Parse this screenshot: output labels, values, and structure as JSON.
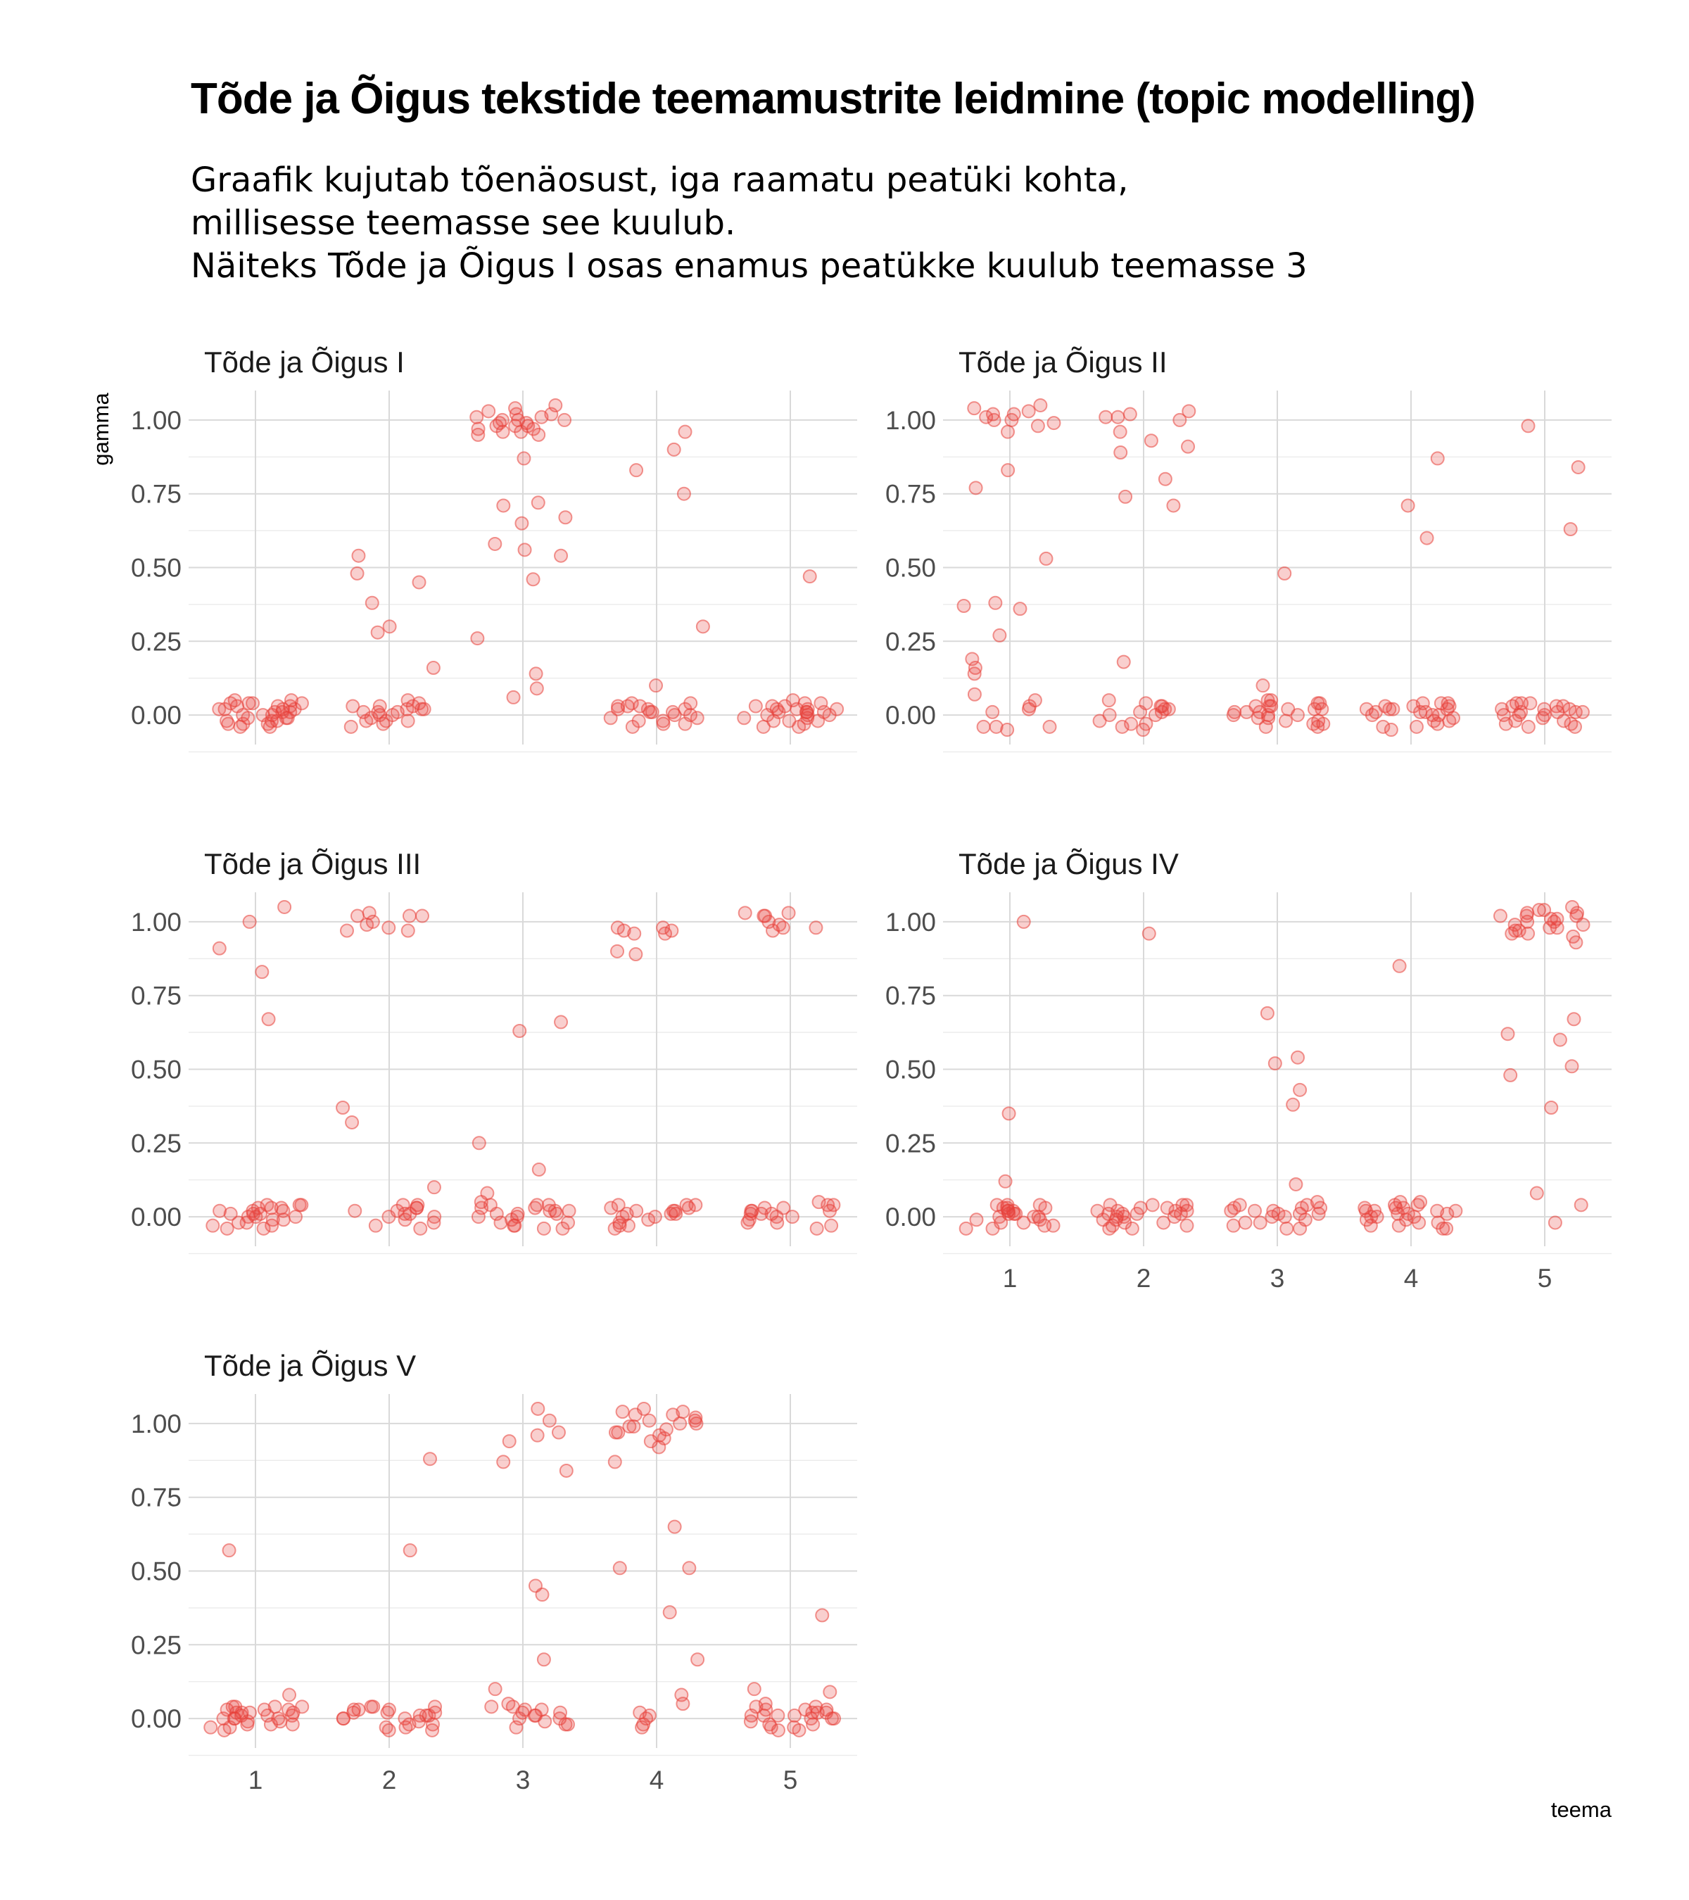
{
  "chart_data": {
    "type": "scatter",
    "title": "Tõde ja Õigus tekstide teemamustrite leidmine (topic modelling)",
    "subtitle_lines": [
      "Graafik kujutab tõenäosust, iga raamatu peatüki kohta,",
      "millisesse teemasse see kuulub.",
      "Näiteks Tõde ja Õigus I osas enamus peatükke kuulub teemasse 3"
    ],
    "xlabel": "teema",
    "ylabel": "gamma",
    "x_categories": [
      "1",
      "2",
      "3",
      "4",
      "5"
    ],
    "y_ticks": [
      "0.00",
      "0.25",
      "0.50",
      "0.75",
      "1.00"
    ],
    "ylim": [
      -0.1,
      1.1
    ],
    "grid": true,
    "point_color": "#e8413a",
    "point_opacity": 0.25,
    "jitter_width": 0.35,
    "panels": [
      {
        "name": "Tõde ja Õigus I",
        "show_x_labels": false,
        "show_y_title": true,
        "series": [
          {
            "topic": 1,
            "gamma": [
              -0.04,
              0.03,
              -0.03,
              0.04,
              0.0,
              -0.02,
              0.02,
              0.05,
              0.01,
              -0.01,
              0.03,
              -0.04,
              0.02,
              -0.02,
              0.0,
              0.04,
              -0.03,
              0.01,
              0.03,
              -0.01,
              0.02,
              0.04,
              -0.02,
              0.0,
              0.05,
              -0.03,
              0.02,
              0.01,
              -0.01,
              0.04
            ]
          },
          {
            "topic": 2,
            "gamma": [
              0.45,
              0.54,
              0.48,
              0.38,
              0.28,
              0.3,
              0.16,
              -0.02,
              0.03,
              0.01,
              -0.03,
              0.02,
              0.04,
              -0.01,
              0.0,
              0.02,
              -0.02,
              0.03,
              0.01,
              -0.04,
              0.02,
              0.0,
              0.05,
              -0.02,
              0.01,
              0.03
            ]
          },
          {
            "topic": 3,
            "gamma": [
              0.98,
              1.0,
              1.02,
              0.97,
              0.99,
              1.03,
              0.95,
              1.01,
              0.96,
              1.0,
              1.04,
              0.98,
              1.02,
              0.96,
              0.99,
              1.05,
              0.97,
              1.01,
              0.95,
              0.98,
              1.0,
              0.87,
              0.72,
              0.71,
              0.65,
              0.67,
              0.58,
              0.56,
              0.54,
              0.46,
              0.26,
              0.14,
              0.09,
              0.06
            ]
          },
          {
            "topic": 4,
            "gamma": [
              0.96,
              0.9,
              0.83,
              0.75,
              0.3,
              0.1,
              0.03,
              -0.02,
              0.01,
              0.04,
              -0.03,
              0.0,
              0.02,
              -0.01,
              0.03,
              -0.04,
              0.01,
              0.02,
              -0.02,
              0.0,
              0.04,
              -0.03,
              0.02,
              0.01,
              -0.01,
              0.03
            ]
          },
          {
            "topic": 5,
            "gamma": [
              0.47,
              0.04,
              -0.02,
              0.02,
              -0.04,
              0.01,
              0.03,
              -0.01,
              0.0,
              0.05,
              -0.03,
              0.02,
              0.01,
              -0.02,
              0.04,
              0.0,
              -0.01,
              0.03,
              0.02,
              -0.04,
              0.01,
              0.03,
              -0.02,
              0.0,
              0.02,
              0.01
            ]
          }
        ]
      },
      {
        "name": "Tõde ja Õigus II",
        "show_x_labels": false,
        "show_y_title": false,
        "series": [
          {
            "topic": 1,
            "gamma": [
              1.01,
              1.0,
              1.04,
              1.02,
              0.99,
              1.03,
              1.0,
              1.05,
              0.98,
              1.02,
              0.96,
              0.83,
              0.77,
              0.53,
              0.38,
              0.37,
              0.36,
              0.27,
              0.19,
              0.16,
              0.14,
              0.07,
              0.05,
              0.03,
              0.02,
              -0.04,
              -0.04,
              -0.05,
              -0.04,
              0.01
            ]
          },
          {
            "topic": 2,
            "gamma": [
              1.01,
              1.0,
              1.02,
              1.03,
              1.01,
              0.96,
              0.93,
              0.91,
              0.89,
              0.8,
              0.74,
              0.71,
              0.18,
              0.04,
              0.02,
              -0.03,
              0.01,
              0.03,
              -0.04,
              0.0,
              0.02,
              -0.02,
              0.05,
              -0.05,
              0.01,
              -0.03,
              0.03,
              0.0
            ]
          },
          {
            "topic": 3,
            "gamma": [
              0.48,
              0.1,
              0.05,
              0.03,
              -0.02,
              0.01,
              0.04,
              -0.04,
              0.02,
              0.0,
              -0.03,
              0.03,
              0.01,
              -0.01,
              0.05,
              -0.02,
              0.02,
              0.0,
              0.03,
              -0.04,
              0.01,
              0.02,
              -0.01,
              0.04,
              0.0,
              -0.03
            ]
          },
          {
            "topic": 4,
            "gamma": [
              0.87,
              0.71,
              0.6,
              0.04,
              0.02,
              -0.03,
              0.01,
              0.04,
              -0.04,
              0.0,
              0.03,
              -0.02,
              0.02,
              0.01,
              -0.05,
              0.04,
              0.0,
              -0.01,
              0.03,
              0.02,
              -0.04,
              0.01,
              0.03,
              -0.02,
              0.0,
              0.02
            ]
          },
          {
            "topic": 5,
            "gamma": [
              0.98,
              0.84,
              0.63,
              0.03,
              -0.02,
              0.04,
              0.01,
              -0.04,
              0.02,
              0.0,
              0.03,
              -0.03,
              0.01,
              0.04,
              -0.01,
              0.02,
              0.0,
              -0.04,
              0.03,
              0.01,
              -0.02,
              0.02,
              0.04,
              -0.03,
              0.0,
              0.01
            ]
          }
        ]
      },
      {
        "name": "Tõde ja Õigus III",
        "show_x_labels": false,
        "show_y_title": false,
        "series": [
          {
            "topic": 1,
            "gamma": [
              0.83,
              0.91,
              1.05,
              1.0,
              0.67,
              0.04,
              -0.02,
              0.02,
              -0.04,
              0.01,
              0.03,
              0.0,
              -0.03,
              0.04,
              0.02,
              -0.01,
              0.01,
              -0.04,
              0.03,
              0.0,
              -0.02,
              0.02,
              0.04,
              -0.03,
              0.01,
              -0.01,
              0.03,
              0.0
            ]
          },
          {
            "topic": 2,
            "gamma": [
              0.97,
              1.02,
              1.03,
              0.99,
              0.97,
              1.02,
              1.02,
              0.98,
              1.0,
              0.37,
              0.32,
              0.1,
              0.04,
              0.02,
              -0.02,
              0.03,
              0.01,
              -0.04,
              0.0,
              0.04,
              -0.01,
              0.02,
              0.03,
              -0.03,
              0.01,
              0.0
            ]
          },
          {
            "topic": 3,
            "gamma": [
              0.66,
              0.63,
              0.25,
              0.16,
              0.08,
              0.04,
              0.02,
              -0.03,
              0.01,
              0.05,
              -0.04,
              0.0,
              0.03,
              -0.02,
              0.02,
              0.04,
              -0.01,
              0.01,
              -0.04,
              0.03,
              0.0,
              0.02,
              -0.03,
              0.01,
              0.04,
              -0.02
            ]
          },
          {
            "topic": 4,
            "gamma": [
              0.97,
              0.98,
              0.96,
              0.98,
              0.97,
              0.9,
              0.89,
              0.96,
              0.04,
              0.01,
              -0.03,
              0.02,
              0.03,
              -0.02,
              0.0,
              0.04,
              -0.04,
              0.01,
              0.02,
              -0.01,
              0.03,
              0.0,
              -0.03,
              0.02,
              0.04,
              0.01
            ]
          },
          {
            "topic": 5,
            "gamma": [
              1.02,
              1.03,
              1.02,
              0.98,
              1.03,
              1.0,
              0.97,
              0.99,
              0.98,
              0.03,
              0.01,
              -0.02,
              0.04,
              0.02,
              0.0,
              -0.03,
              0.05,
              0.01,
              -0.01,
              0.03,
              0.02,
              -0.04,
              0.0,
              0.04,
              0.01,
              0.02,
              -0.02
            ]
          }
        ]
      },
      {
        "name": "Tõde ja Õigus IV",
        "show_x_labels": true,
        "show_y_title": false,
        "series": [
          {
            "topic": 1,
            "gamma": [
              1.0,
              0.35,
              0.12,
              0.04,
              -0.02,
              0.02,
              -0.04,
              0.01,
              0.03,
              0.0,
              -0.03,
              0.04,
              0.02,
              -0.01,
              0.01,
              -0.04,
              0.03,
              0.0,
              0.02,
              -0.02,
              0.04,
              -0.03,
              0.01,
              0.0,
              0.03,
              -0.01
            ]
          },
          {
            "topic": 2,
            "gamma": [
              0.96,
              0.04,
              0.02,
              -0.03,
              0.01,
              0.04,
              -0.02,
              0.0,
              0.03,
              -0.04,
              0.02,
              0.01,
              -0.01,
              0.04,
              0.0,
              -0.03,
              0.02,
              0.03,
              -0.02,
              0.01,
              0.0,
              0.04,
              -0.04,
              0.02,
              0.01,
              -0.01
            ]
          },
          {
            "topic": 3,
            "gamma": [
              0.69,
              0.54,
              0.52,
              0.43,
              0.38,
              0.11,
              0.05,
              0.03,
              -0.02,
              0.01,
              0.04,
              -0.04,
              0.02,
              0.0,
              -0.03,
              0.03,
              0.01,
              -0.01,
              0.04,
              0.02,
              -0.04,
              0.0,
              0.03,
              0.01,
              -0.02,
              0.02
            ]
          },
          {
            "topic": 4,
            "gamma": [
              0.85,
              0.05,
              0.02,
              -0.03,
              0.01,
              0.04,
              -0.02,
              0.0,
              0.03,
              -0.04,
              0.02,
              0.05,
              -0.01,
              0.01,
              0.03,
              -0.03,
              0.0,
              0.04,
              0.02,
              -0.02,
              0.01,
              0.03,
              -0.04,
              0.0,
              0.02,
              -0.01
            ]
          },
          {
            "topic": 5,
            "gamma": [
              1.04,
              1.02,
              1.05,
              0.99,
              1.03,
              1.0,
              0.97,
              1.01,
              1.04,
              0.98,
              1.02,
              0.96,
              1.0,
              1.03,
              0.97,
              0.99,
              1.01,
              0.95,
              0.93,
              0.98,
              1.02,
              0.96,
              0.67,
              0.62,
              0.6,
              0.51,
              0.48,
              0.37,
              0.08,
              0.04,
              -0.02
            ]
          }
        ]
      },
      {
        "name": "Tõde ja Õigus V",
        "show_x_labels": true,
        "show_y_title": false,
        "series": [
          {
            "topic": 1,
            "gamma": [
              0.57,
              0.08,
              0.04,
              0.02,
              -0.02,
              0.03,
              0.0,
              -0.03,
              0.01,
              0.04,
              -0.01,
              0.02,
              -0.04,
              0.0,
              0.03,
              0.01,
              -0.02,
              0.02,
              0.04,
              -0.03,
              0.0,
              0.01,
              0.03,
              -0.01,
              0.02,
              -0.02,
              0.0,
              0.04
            ]
          },
          {
            "topic": 2,
            "gamma": [
              0.88,
              0.57,
              0.04,
              0.02,
              -0.03,
              0.01,
              0.03,
              -0.02,
              0.0,
              0.04,
              -0.04,
              0.02,
              0.01,
              -0.01,
              0.03,
              0.0,
              -0.03,
              0.02,
              0.04,
              -0.02,
              0.01,
              0.0,
              -0.04,
              0.03
            ]
          },
          {
            "topic": 3,
            "gamma": [
              1.05,
              1.01,
              0.97,
              0.96,
              0.94,
              0.87,
              0.84,
              0.45,
              0.42,
              0.2,
              0.1,
              0.05,
              0.03,
              -0.02,
              0.01,
              0.04,
              -0.03,
              0.0,
              0.02,
              -0.01,
              0.03,
              0.04,
              -0.02,
              0.01,
              0.0,
              0.02
            ]
          },
          {
            "topic": 4,
            "gamma": [
              1.04,
              1.03,
              1.01,
              1.02,
              0.99,
              1.04,
              1.0,
              0.97,
              1.03,
              0.95,
              0.98,
              1.01,
              0.97,
              0.92,
              0.94,
              1.05,
              0.99,
              0.96,
              1.0,
              0.87,
              0.65,
              0.51,
              0.51,
              0.36,
              0.2,
              0.08,
              0.05,
              0.02,
              -0.03,
              0.0,
              -0.02,
              0.01
            ]
          },
          {
            "topic": 5,
            "gamma": [
              0.35,
              0.1,
              0.09,
              0.05,
              0.03,
              -0.02,
              0.01,
              0.04,
              -0.03,
              0.0,
              0.02,
              -0.04,
              0.03,
              0.01,
              -0.01,
              0.04,
              0.02,
              -0.03,
              0.0,
              0.01,
              0.03,
              -0.02,
              0.02,
              -0.04,
              0.0,
              0.01
            ]
          }
        ]
      }
    ]
  }
}
